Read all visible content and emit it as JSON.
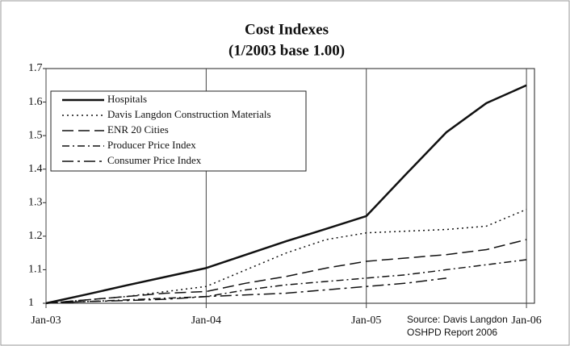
{
  "chart_data": {
    "type": "line",
    "title": "Cost Indexes",
    "subtitle": "(1/2003 base 1.00)",
    "annotation": [
      "Source: Davis Langdon",
      "OSHPD Report 2006"
    ],
    "x": [
      2003,
      2003.25,
      2003.5,
      2003.75,
      2004,
      2004.25,
      2004.5,
      2004.75,
      2005,
      2005.25,
      2005.5,
      2005.75,
      2006
    ],
    "xlim": [
      2003,
      2006.05
    ],
    "xticks": [
      {
        "value": 2003,
        "label": "Jan-03"
      },
      {
        "value": 2004,
        "label": "Jan-04"
      },
      {
        "value": 2005,
        "label": "Jan-05"
      },
      {
        "value": 2006,
        "label": "Jan-06"
      }
    ],
    "ylim": [
      1,
      1.7
    ],
    "yticks": [
      1,
      1.1,
      1.2,
      1.3,
      1.4,
      1.5,
      1.6,
      1.7
    ],
    "grid": "x",
    "legend": "upper left",
    "series": [
      {
        "name": "Hospitals",
        "color": "#111111",
        "dash": "solid",
        "width": 2.5,
        "values": [
          1.0,
          1.026,
          1.053,
          1.079,
          1.105,
          1.145,
          1.185,
          1.222,
          1.26,
          1.386,
          1.51,
          1.597,
          1.65
        ]
      },
      {
        "name": "Davis Langdon Construction Materials",
        "color": "#111111",
        "dash": "dot",
        "width": 1.5,
        "values": [
          1.0,
          1.01,
          1.02,
          1.035,
          1.05,
          1.1,
          1.15,
          1.19,
          1.21,
          1.215,
          1.22,
          1.23,
          1.28
        ]
      },
      {
        "name": "ENR 20 Cities",
        "color": "#111111",
        "dash": "longdash",
        "width": 1.5,
        "values": [
          1.0,
          1.01,
          1.02,
          1.03,
          1.035,
          1.06,
          1.08,
          1.105,
          1.125,
          1.135,
          1.145,
          1.16,
          1.19
        ]
      },
      {
        "name": "Producer Price Index",
        "color": "#111111",
        "dash": "dashdot",
        "width": 1.5,
        "values": [
          1.0,
          1.005,
          1.01,
          1.015,
          1.02,
          1.04,
          1.055,
          1.065,
          1.075,
          1.085,
          1.1,
          1.115,
          1.13
        ]
      },
      {
        "name": "Consumer Price Index",
        "color": "#111111",
        "dash": "longdashdot",
        "width": 1.5,
        "values": [
          1.0,
          1.005,
          1.008,
          1.012,
          1.02,
          1.025,
          1.03,
          1.04,
          1.05,
          1.06,
          1.075,
          null,
          null
        ]
      }
    ]
  }
}
